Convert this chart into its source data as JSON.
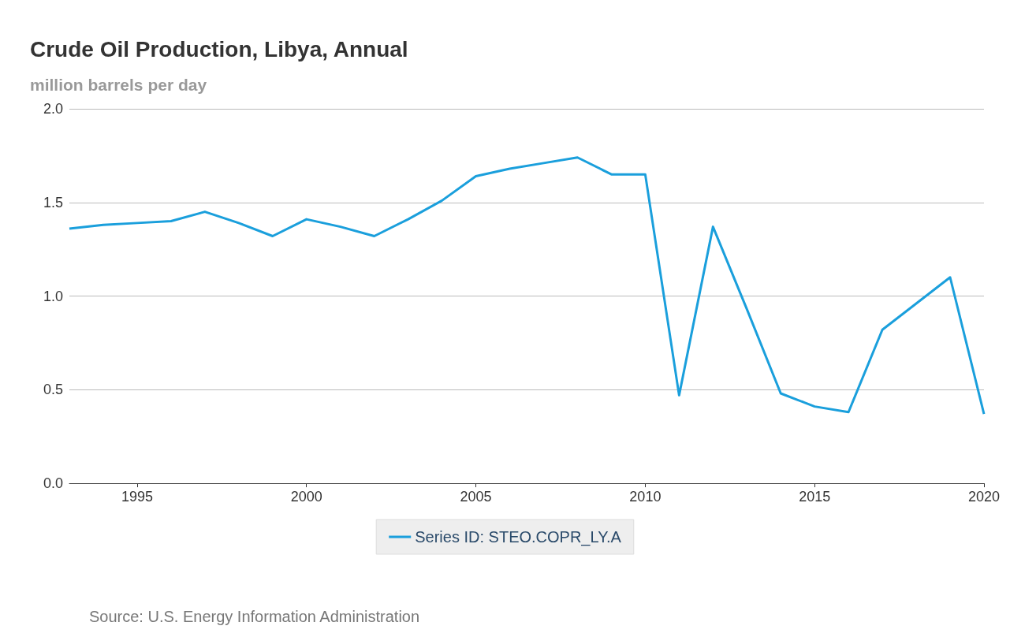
{
  "chart_data": {
    "type": "line",
    "title": "Crude Oil Production, Libya, Annual",
    "ylabel": "million barrels per day",
    "x": [
      1993,
      1994,
      1995,
      1996,
      1997,
      1998,
      1999,
      2000,
      2001,
      2002,
      2003,
      2004,
      2005,
      2006,
      2007,
      2008,
      2009,
      2010,
      2011,
      2012,
      2013,
      2014,
      2015,
      2016,
      2017,
      2018,
      2019,
      2020
    ],
    "series": [
      {
        "name": "Series ID: STEO.COPR_LY.A",
        "color": "#1a9fdc",
        "values": [
          1.36,
          1.38,
          1.39,
          1.4,
          1.45,
          1.39,
          1.32,
          1.41,
          1.37,
          1.32,
          1.41,
          1.51,
          1.64,
          1.68,
          1.71,
          1.74,
          1.65,
          1.65,
          0.47,
          1.37,
          0.93,
          0.48,
          0.41,
          0.38,
          0.82,
          0.96,
          1.1,
          0.37
        ]
      }
    ],
    "xlim": [
      1993,
      2020
    ],
    "xticks": [
      1995,
      2000,
      2005,
      2010,
      2015,
      2020
    ],
    "ylim": [
      0,
      2
    ],
    "yticks": [
      {
        "value": 0,
        "label": "0.0"
      },
      {
        "value": 0.5,
        "label": "0.5"
      },
      {
        "value": 1,
        "label": "1.0"
      },
      {
        "value": 1.5,
        "label": "1.5"
      },
      {
        "value": 2,
        "label": "2.0"
      }
    ],
    "grid": "y",
    "legend": "bottom",
    "marker": "none",
    "line_style": "solid",
    "annotations": [
      "Source: U.S. Energy Information Administration"
    ]
  }
}
